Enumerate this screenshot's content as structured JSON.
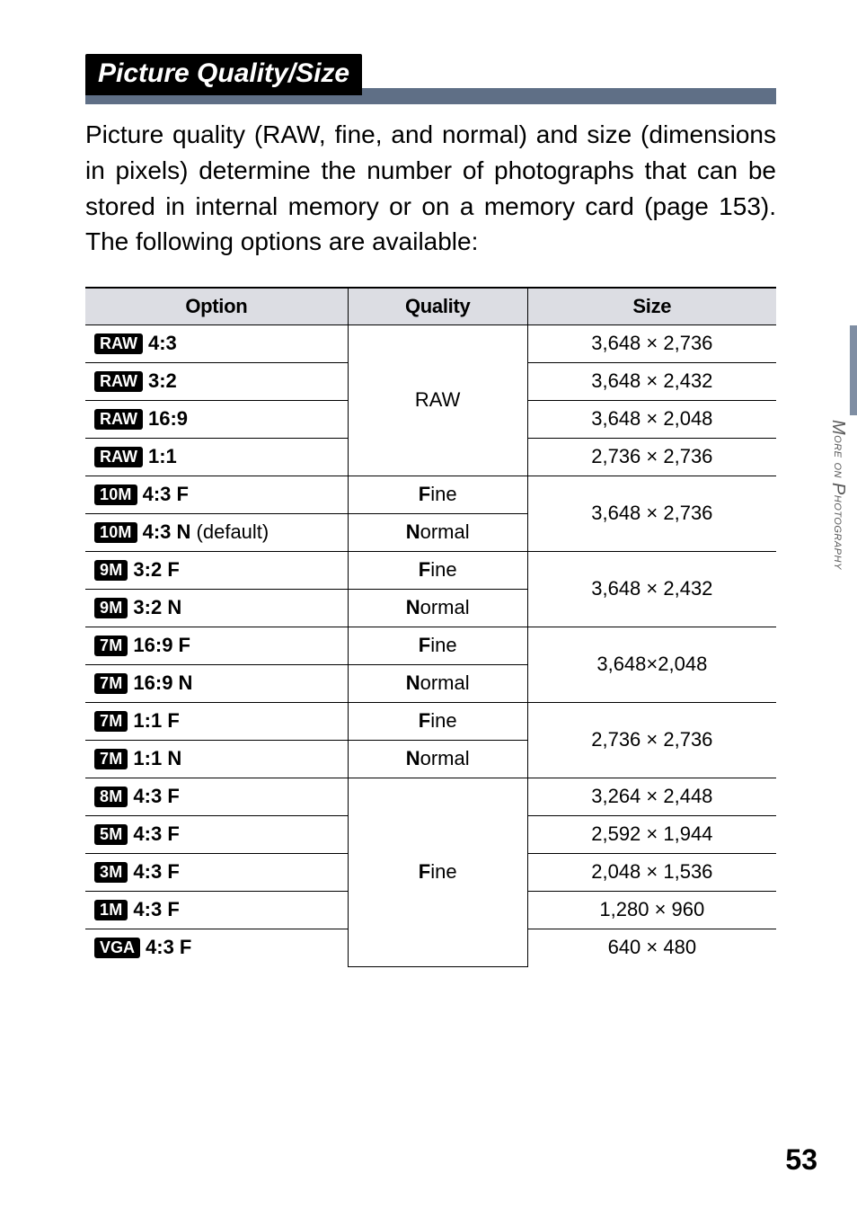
{
  "section": {
    "title": "Picture Quality/Size"
  },
  "intro": "Picture quality (RAW, fine, and normal) and size (dimensions in pixels) determine the number of photographs that can be stored in internal memory or on a memory card (page 153). The following options are available:",
  "columns": {
    "opt": "Option",
    "quality": "Quality",
    "size": "Size"
  },
  "qualities": {
    "raw": "RAW",
    "fine_label": "ine",
    "normal_label": "ormal"
  },
  "rows": {
    "r0": {
      "chip": "RAW",
      "label": "4:3",
      "quality_ref": "raw",
      "size": "3,648 × 2,736"
    },
    "r1": {
      "chip": "RAW",
      "label": "3:2",
      "size": "3,648 × 2,432"
    },
    "r2": {
      "chip": "RAW",
      "label": "16:9",
      "size": "3,648 × 2,048"
    },
    "r3": {
      "chip": "RAW",
      "label": "1:1",
      "size": "2,736 × 2,736"
    },
    "r4": {
      "chip": "10M",
      "label": "4:3 F",
      "quality_accent": "F",
      "quality_rest": "ine",
      "size_shared": "3,648 × 2,736"
    },
    "r5": {
      "chip": "10M",
      "label": "4:3 N",
      "default": " (default)",
      "quality_accent": "N",
      "quality_rest": "ormal"
    },
    "r6": {
      "chip": "9M",
      "label": "3:2 F",
      "quality_accent": "F",
      "quality_rest": "ine",
      "size_shared": "3,648 × 2,432"
    },
    "r7": {
      "chip": "9M",
      "label": "3:2 N",
      "quality_accent": "N",
      "quality_rest": "ormal"
    },
    "r8": {
      "chip": "7M",
      "label": "16:9 F",
      "quality_accent": "F",
      "quality_rest": "ine",
      "size_shared": "3,648×2,048"
    },
    "r9": {
      "chip": "7M",
      "label": "16:9 N",
      "quality_accent": "N",
      "quality_rest": "ormal"
    },
    "r10": {
      "chip": "7M",
      "label": "1:1 F",
      "quality_accent": "F",
      "quality_rest": "ine",
      "size_shared": "2,736 × 2,736"
    },
    "r11": {
      "chip": "7M",
      "label": "1:1 N",
      "quality_accent": "N",
      "quality_rest": "ormal"
    },
    "r12": {
      "chip": "8M",
      "label": "4:3 F",
      "quality_accent": "F",
      "quality_rest": "ine",
      "size": "3,264 × 2,448"
    },
    "r13": {
      "chip": "5M",
      "label": "4:3 F",
      "size": "2,592 × 1,944"
    },
    "r14": {
      "chip": "3M",
      "label": "4:3 F",
      "size": "2,048 × 1,536"
    },
    "r15": {
      "chip": "1M",
      "label": "4:3 F",
      "size": "1,280 × 960"
    },
    "r16": {
      "chip": "VGA",
      "label": "4:3 F",
      "size": "640 × 480"
    }
  },
  "side_label": {
    "line": "More on Photography"
  },
  "page_number": "53",
  "colors": {
    "header_bar": "#5f6f86",
    "table_header_bg": "#dcdde3",
    "side_bar": "#7f8ea3"
  }
}
